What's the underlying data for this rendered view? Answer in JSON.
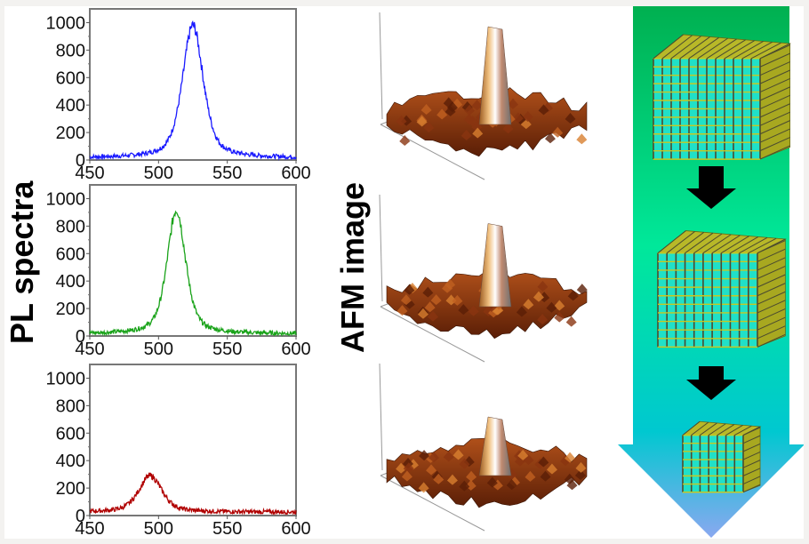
{
  "labels": {
    "left_title": "PL spectra",
    "middle_title": "AFM image"
  },
  "colors": {
    "series_blue": "#1a1aff",
    "series_green": "#1aa31a",
    "series_red": "#b00000",
    "arrow_top": "#00b050",
    "arrow_mid": "#00e89a",
    "arrow_low": "#00c8d0",
    "arrow_tip": "#8aa8f0",
    "step_arrow": "#000000",
    "cube_yellow": "#d8d830",
    "cube_cyan": "#20e0c8",
    "afm_surface": "#a0400c",
    "afm_peak": "#e8e4e0"
  },
  "chart_data": [
    {
      "type": "line",
      "title": "",
      "xlabel": "",
      "ylabel": "",
      "xlim": [
        450,
        600
      ],
      "ylim": [
        0,
        1100
      ],
      "xticks": [
        450,
        500,
        550,
        600
      ],
      "yticks": [
        0,
        200,
        400,
        600,
        800,
        1000
      ],
      "series": [
        {
          "name": "blue",
          "peak_x": 525,
          "peak_y": 980,
          "fwhm": 18,
          "baseline": 15
        }
      ]
    },
    {
      "type": "line",
      "title": "",
      "xlabel": "",
      "ylabel": "",
      "xlim": [
        450,
        600
      ],
      "ylim": [
        0,
        1100
      ],
      "xticks": [
        450,
        500,
        550,
        600
      ],
      "yticks": [
        0,
        200,
        400,
        600,
        800,
        1000
      ],
      "series": [
        {
          "name": "green",
          "peak_x": 513,
          "peak_y": 920,
          "fwhm": 16,
          "baseline": 15
        }
      ]
    },
    {
      "type": "line",
      "title": "",
      "xlabel": "",
      "ylabel": "",
      "xlim": [
        450,
        600
      ],
      "ylim": [
        0,
        1100
      ],
      "xticks": [
        450,
        500,
        550,
        600
      ],
      "yticks": [
        0,
        200,
        400,
        600,
        800,
        1000
      ],
      "series": [
        {
          "name": "red",
          "peak_x": 494,
          "peak_y": 290,
          "fwhm": 20,
          "baseline": 25
        }
      ]
    }
  ],
  "afm_panels": [
    {
      "name": "afm-top",
      "relative_peak_height": 1.0
    },
    {
      "name": "afm-middle",
      "relative_peak_height": 0.85
    },
    {
      "name": "afm-bottom",
      "relative_peak_height": 0.6
    }
  ],
  "cubes": [
    {
      "name": "large",
      "relative_size": 1.0,
      "grid": 12
    },
    {
      "name": "medium",
      "relative_size": 0.85,
      "grid": 11
    },
    {
      "name": "small",
      "relative_size": 0.55,
      "grid": 7
    }
  ]
}
